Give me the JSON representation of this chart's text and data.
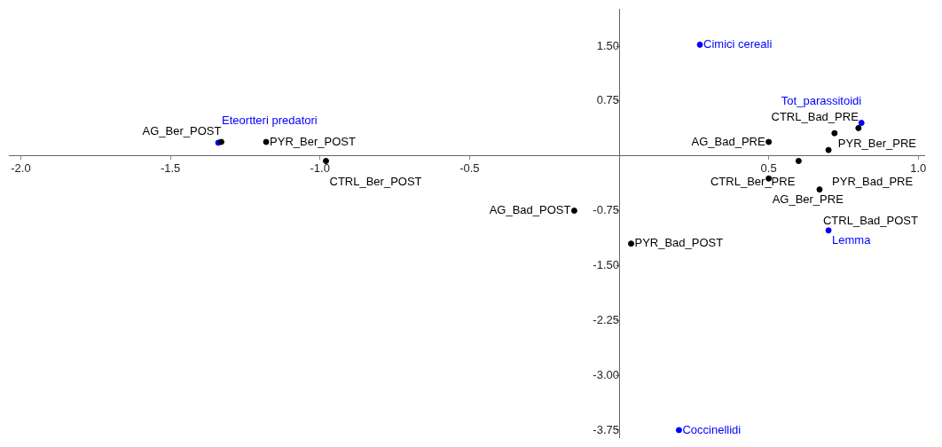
{
  "chart_data": {
    "type": "scatter",
    "marker": "circle",
    "grid": false,
    "xlim": [
      -2.04,
      1.02
    ],
    "ylim": [
      -3.85,
      2.0
    ],
    "xticks": [
      {
        "value": -2.0,
        "label": "-2.0"
      },
      -1.5,
      {
        "value": -1.0,
        "label": "-1.0"
      },
      -0.5,
      0.5,
      {
        "value": 1.0,
        "label": "1.0"
      }
    ],
    "yticks": [
      {
        "value": 1.5,
        "label": "1.50"
      },
      0.75,
      -0.75,
      {
        "value": -1.5,
        "label": "-1.50"
      },
      -2.25,
      {
        "value": -3.0,
        "label": "-3.00"
      },
      -3.75
    ],
    "series": [
      {
        "color": "#000000",
        "x": [
          0.8,
          0.72,
          0.5,
          0.7,
          0.6,
          0.5,
          0.67,
          -0.15,
          0.04,
          -1.33,
          -1.18,
          -0.98
        ],
        "values": [
          0.38,
          0.31,
          0.19,
          0.08,
          -0.07,
          -0.31,
          -0.46,
          -0.75,
          -1.2,
          0.19,
          0.19,
          -0.07
        ]
      },
      {
        "color": "#0000ff",
        "x": [
          0.27,
          0.81,
          0.7,
          0.2,
          -1.34
        ],
        "values": [
          1.52,
          0.45,
          -1.02,
          -3.75,
          0.18
        ]
      }
    ],
    "annotations": [
      {
        "text": "CTRL_Bad_PRE",
        "x": 0.8,
        "y": 0.38
      },
      {
        "text": "PYR_Ber_PRE",
        "x": 0.72,
        "y": 0.31
      },
      {
        "text": "AG_Bad_PRE",
        "x": 0.5,
        "y": 0.19
      },
      {
        "text": "PYR_Bad_PRE",
        "x": 0.7,
        "y": 0.08
      },
      {
        "text": "CTRL_Ber_PRE",
        "x": 0.6,
        "y": -0.07
      },
      {
        "text": "AG_Ber_PRE",
        "x": 0.5,
        "y": -0.31
      },
      {
        "text": "CTRL_Bad_POST",
        "x": 0.67,
        "y": -0.46
      },
      {
        "text": "AG_Bad_POST",
        "x": -0.15,
        "y": -0.75
      },
      {
        "text": "PYR_Bad_POST",
        "x": 0.04,
        "y": -1.2
      },
      {
        "text": "AG_Ber_POST",
        "x": -1.33,
        "y": 0.19
      },
      {
        "text": "PYR_Ber_POST",
        "x": -1.18,
        "y": 0.19
      },
      {
        "text": "CTRL_Ber_POST",
        "x": -0.98,
        "y": -0.07
      },
      {
        "text": "Cimici cereali",
        "x": 0.27,
        "y": 1.52
      },
      {
        "text": "Tot_parassitoidi",
        "x": 0.81,
        "y": 0.45
      },
      {
        "text": "Lemma",
        "x": 0.7,
        "y": -1.02
      },
      {
        "text": "Coccinellidi",
        "x": 0.2,
        "y": -3.75
      },
      {
        "text": "Eteortteri predatori",
        "x": -1.34,
        "y": 0.18
      }
    ]
  }
}
